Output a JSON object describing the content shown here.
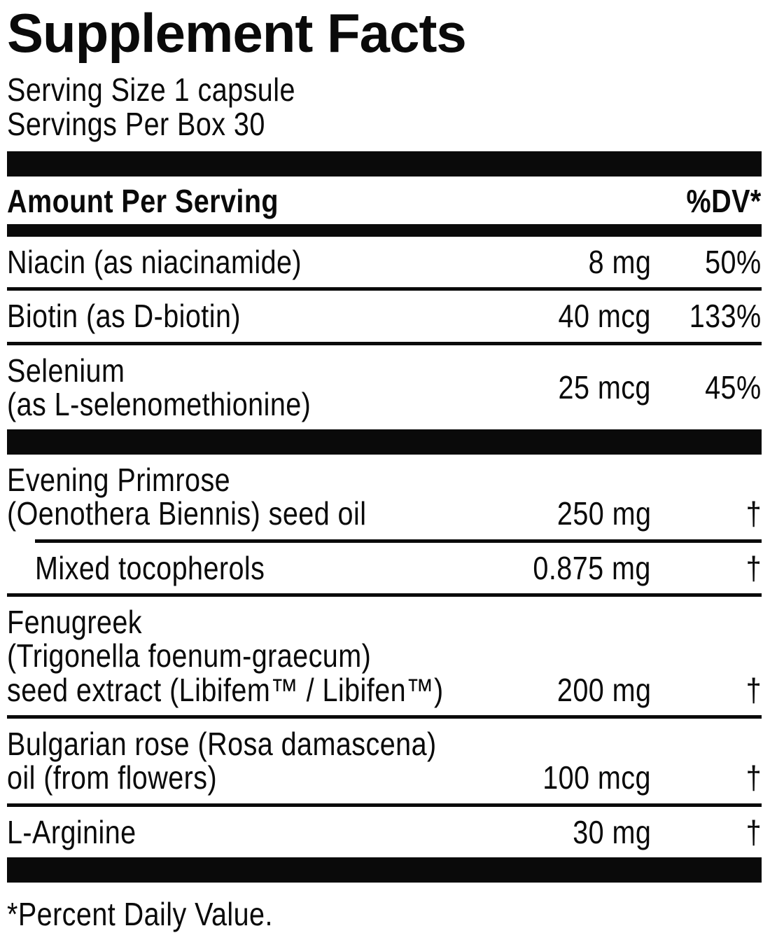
{
  "colors": {
    "text": "#0a0a0a",
    "background": "#ffffff",
    "bar": "#0a0a0a"
  },
  "header": {
    "title": "Supplement Facts",
    "serving_size": "Serving Size 1 capsule",
    "servings_per_box": "Servings Per Box 30"
  },
  "table": {
    "amount_header": "Amount Per Serving",
    "dv_header": "%DV*",
    "rows": [
      {
        "lines": [
          "Niacin (as niacinamide)"
        ],
        "amount": "8 mg",
        "dv": "50%"
      },
      {
        "lines": [
          "Biotin (as D-biotin)"
        ],
        "amount": "40 mcg",
        "dv": "133%"
      },
      {
        "lines": [
          "Selenium",
          "(as L-selenomethionine)"
        ],
        "amount": "25 mcg",
        "dv": "45%"
      },
      {
        "lines": [
          "Evening Primrose",
          "(Oenothera Biennis) seed oil"
        ],
        "amount": "250 mg",
        "dv": "†"
      },
      {
        "lines": [
          "Mixed tocopherols"
        ],
        "amount": "0.875 mg",
        "dv": "†",
        "indented": true
      },
      {
        "lines": [
          "Fenugreek",
          "(Trigonella foenum-graecum)",
          "seed extract (Libifem™ / Libifen™)"
        ],
        "amount": "200 mg",
        "dv": "†"
      },
      {
        "lines": [
          "Bulgarian rose (Rosa damascena)",
          "oil (from flowers)"
        ],
        "amount": "100 mcg",
        "dv": "†"
      },
      {
        "lines": [
          "L-Arginine"
        ],
        "amount": "30 mg",
        "dv": "†"
      }
    ]
  },
  "footnote": "*Percent Daily Value."
}
